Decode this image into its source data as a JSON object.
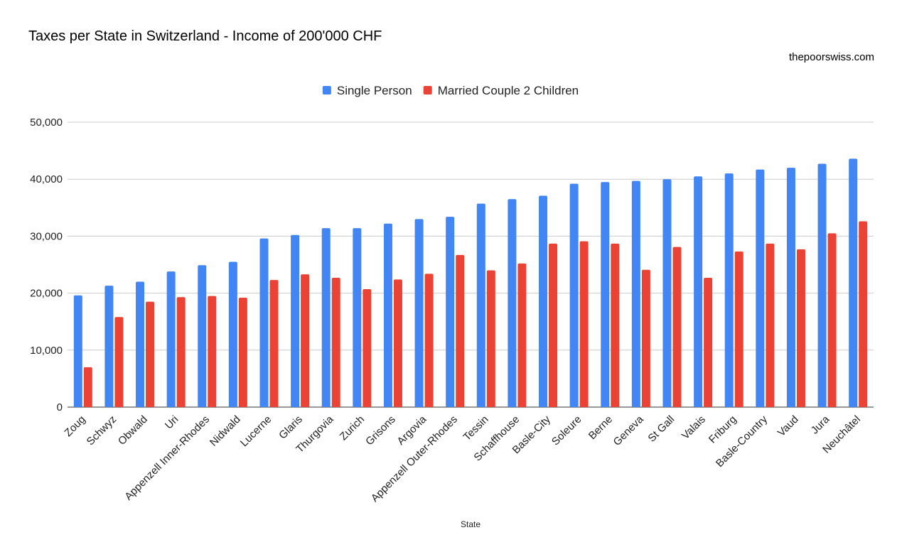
{
  "chart_data": {
    "type": "bar",
    "title": "Taxes per State in Switzerland - Income of 200'000 CHF",
    "subtitle": "thepoorswiss.com",
    "xlabel": "State",
    "ylabel": "",
    "ylim": [
      0,
      50000
    ],
    "yticks": [
      0,
      10000,
      20000,
      30000,
      40000,
      50000
    ],
    "ytick_labels": [
      "0",
      "10,000",
      "20,000",
      "30,000",
      "40,000",
      "50,000"
    ],
    "grid": true,
    "legend_position": "top",
    "categories": [
      "Zoug",
      "Schwyz",
      "Obwald",
      "Uri",
      "Appenzell Inner-Rhodes",
      "Nidwald",
      "Lucerne",
      "Glaris",
      "Thurgovia",
      "Zurich",
      "Grisons",
      "Argovia",
      "Appenzell Outer-Rhodes",
      "Tessin",
      "Schaffhouse",
      "Basle-City",
      "Soleure",
      "Berne",
      "Geneva",
      "St Gall",
      "Valais",
      "Friburg",
      "Basle-Country",
      "Vaud",
      "Jura",
      "Neuchâtel"
    ],
    "series": [
      {
        "name": "Single Person",
        "color": "#4285f4",
        "values": [
          19600,
          21300,
          22000,
          23800,
          24900,
          25500,
          29600,
          30200,
          31400,
          31400,
          32200,
          33000,
          33400,
          35700,
          36500,
          37100,
          39200,
          39500,
          39700,
          40000,
          40500,
          41000,
          41700,
          42000,
          42700,
          43600
        ]
      },
      {
        "name": "Married Couple 2 Children",
        "color": "#ea4335",
        "values": [
          7000,
          15800,
          18500,
          19300,
          19500,
          19200,
          22300,
          23300,
          22700,
          20700,
          22400,
          23400,
          26700,
          24000,
          25200,
          28700,
          29100,
          28700,
          24100,
          28100,
          22700,
          27300,
          28700,
          27700,
          30500,
          32600
        ]
      }
    ]
  }
}
